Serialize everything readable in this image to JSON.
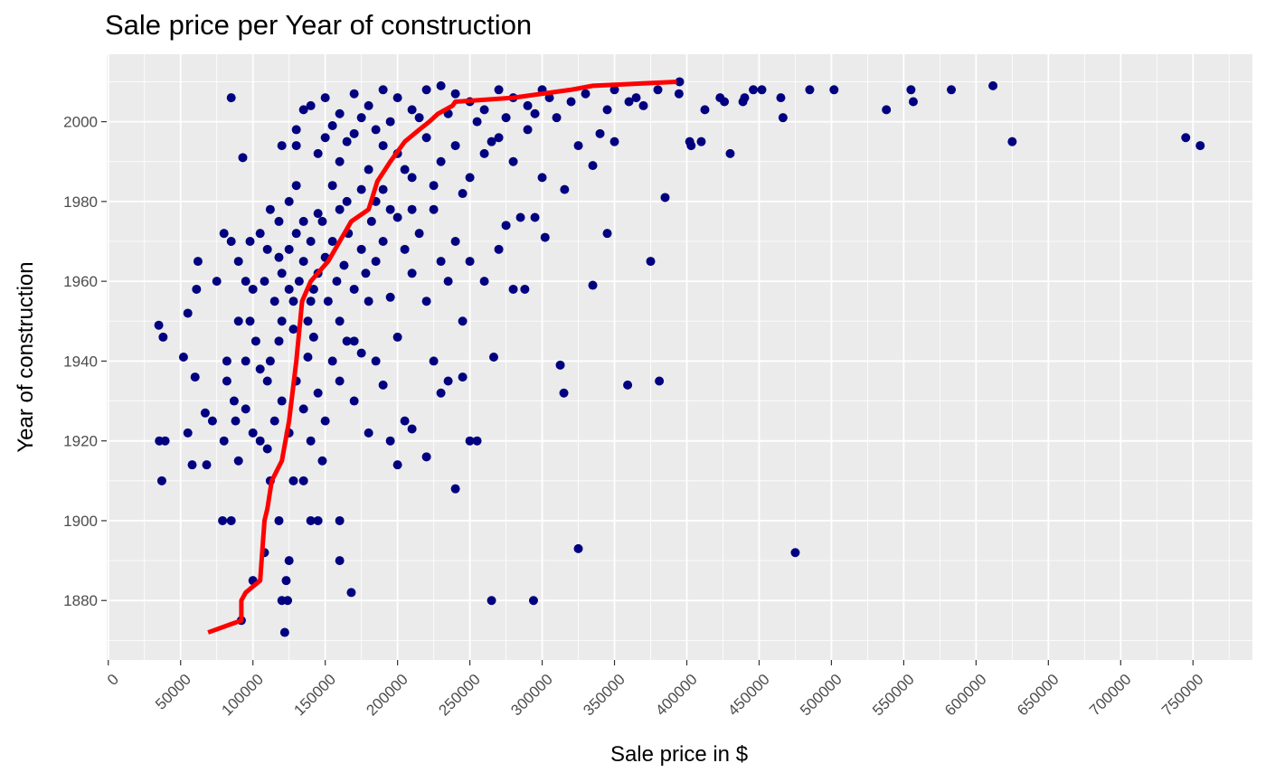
{
  "chart_data": {
    "type": "scatter",
    "title": "Sale price per Year of construction",
    "x_label": "Sale price in $",
    "y_label": "Year of construction",
    "xlim": [
      -1100,
      791100
    ],
    "ylim": [
      1865.1,
      2016.9
    ],
    "xticks": [
      0,
      50000,
      100000,
      150000,
      200000,
      250000,
      300000,
      350000,
      400000,
      450000,
      500000,
      550000,
      600000,
      650000,
      700000,
      750000
    ],
    "yticks": [
      1880,
      1900,
      1920,
      1940,
      1960,
      1980,
      2000
    ],
    "grid": true,
    "points": {
      "color": "#000080",
      "x": [
        755000,
        745000,
        625000,
        611700,
        582900,
        556600,
        555000,
        538000,
        501800,
        485000,
        475000,
        466500,
        465000,
        451900,
        446000,
        440000,
        438800,
        430000,
        426000,
        423000,
        412500,
        410000,
        403000,
        402000,
        395000,
        394600,
        385000,
        381000,
        375000,
        359100,
        345000,
        335000,
        325000,
        315000,
        312500,
        294000,
        265000,
        266500,
        255000,
        240000,
        288000,
        280000,
        302000,
        300000,
        315500,
        335000,
        350000,
        340000,
        325000,
        310000,
        370000,
        380000,
        360000,
        345000,
        300000,
        320000,
        34900,
        37900,
        35300,
        39300,
        37000,
        52000,
        55000,
        58000,
        60000,
        61000,
        62000,
        55000,
        68000,
        67000,
        72000,
        75000,
        80000,
        79000,
        82000,
        85000,
        85000,
        87000,
        90000,
        92000,
        93000,
        95000,
        98000,
        100000,
        102000,
        105000,
        108000,
        110000,
        120000,
        122000,
        123000,
        124000,
        125000,
        118000,
        168000,
        160000,
        160000,
        140000,
        145000,
        135000,
        80000,
        88000,
        95000,
        100000,
        110000,
        115000,
        120000,
        125000,
        130000,
        135000,
        140000,
        145000,
        150000,
        155000,
        160000,
        170000,
        180000,
        185000,
        190000,
        200000,
        205000,
        210000,
        220000,
        225000,
        230000,
        235000,
        245000,
        250000,
        95000,
        105000,
        112000,
        118000,
        128000,
        138000,
        142000,
        165000,
        175000,
        195000,
        148000,
        128000,
        112000,
        90000,
        82000,
        85000,
        90000,
        100000,
        105000,
        110000,
        115000,
        118000,
        120000,
        125000,
        128000,
        130000,
        132000,
        135000,
        138000,
        140000,
        142000,
        145000,
        148000,
        150000,
        152000,
        155000,
        158000,
        160000,
        163000,
        166000,
        170000,
        175000,
        178000,
        182000,
        185000,
        190000,
        195000,
        200000,
        205000,
        210000,
        215000,
        220000,
        225000,
        230000,
        240000,
        250000,
        260000,
        270000,
        275000,
        285000,
        295000,
        245000,
        200000,
        235000,
        120000,
        108000,
        98000,
        112000,
        125000,
        130000,
        145000,
        155000,
        165000,
        175000,
        185000,
        195000,
        210000,
        160000,
        170000,
        180000,
        140000,
        135000,
        125000,
        118000,
        130000,
        145000,
        160000,
        170000,
        180000,
        190000,
        200000,
        210000,
        220000,
        230000,
        240000,
        250000,
        260000,
        270000,
        280000,
        290000,
        140000,
        150000,
        160000,
        170000,
        180000,
        190000,
        200000,
        210000,
        220000,
        230000,
        240000,
        250000,
        260000,
        270000,
        280000,
        290000,
        135000,
        155000,
        175000,
        195000,
        215000,
        235000,
        255000,
        275000,
        295000,
        305000,
        330000,
        350000,
        365000,
        190000,
        205000,
        225000,
        245000,
        265000,
        185000,
        165000,
        150000,
        130000,
        120000
      ],
      "y": [
        1994,
        1996,
        1995,
        2009,
        2008,
        2005,
        2008,
        2003,
        2008,
        2008,
        1892,
        2001,
        2006,
        2008,
        2008,
        2006,
        2005,
        1992,
        2005,
        2006,
        2003,
        1995,
        1994,
        1995,
        2010,
        2007,
        1981,
        1935,
        1965,
        1934,
        1972,
        1959,
        1893,
        1932,
        1939,
        1880,
        1880,
        1941,
        1920,
        1908,
        1958,
        1958,
        1971,
        1986,
        1983,
        1989,
        1995,
        1997,
        1994,
        2001,
        2004,
        2008,
        2005,
        2003,
        2008,
        2005,
        1949,
        1946,
        1920,
        1920,
        1910,
        1941,
        1952,
        1914,
        1936,
        1958,
        1965,
        1922,
        1914,
        1927,
        1925,
        1960,
        1972,
        1900,
        1940,
        1900,
        2006,
        1930,
        1950,
        1875,
        1991,
        1960,
        1970,
        1885,
        1945,
        1920,
        1892,
        1935,
        1880,
        1872,
        1885,
        1880,
        1890,
        1900,
        1882,
        1890,
        1900,
        1900,
        1900,
        1910,
        1920,
        1925,
        1928,
        1922,
        1918,
        1925,
        1930,
        1922,
        1935,
        1928,
        1920,
        1932,
        1925,
        1940,
        1935,
        1930,
        1922,
        1940,
        1934,
        1914,
        1925,
        1923,
        1916,
        1940,
        1932,
        1935,
        1936,
        1920,
        1940,
        1938,
        1940,
        1945,
        1948,
        1941,
        1946,
        1945,
        1942,
        1920,
        1915,
        1910,
        1910,
        1915,
        1935,
        1970,
        1965,
        1958,
        1972,
        1968,
        1955,
        1975,
        1962,
        1968,
        1955,
        1972,
        1960,
        1965,
        1950,
        1970,
        1958,
        1962,
        1975,
        1966,
        1955,
        1970,
        1960,
        1978,
        1964,
        1972,
        1958,
        1968,
        1962,
        1975,
        1965,
        1970,
        1956,
        1976,
        1968,
        1962,
        1972,
        1955,
        1978,
        1965,
        1970,
        1965,
        1960,
        1968,
        1974,
        1976,
        1976,
        1950,
        1946,
        1960,
        1950,
        1960,
        1950,
        1978,
        1980,
        1984,
        1977,
        1984,
        1980,
        1983,
        1980,
        1978,
        1978,
        1950,
        1945,
        1955,
        1955,
        1975,
        1958,
        1966,
        1994,
        1992,
        1990,
        1997,
        1988,
        1994,
        1992,
        1986,
        1996,
        1990,
        1994,
        1986,
        1992,
        1996,
        1990,
        1998,
        2004,
        2006,
        2002,
        2007,
        2004,
        2008,
        2006,
        2003,
        2008,
        2009,
        2007,
        2005,
        2003,
        2008,
        2006,
        2004,
        2003,
        1999,
        2001,
        2000,
        2001,
        2002,
        2000,
        2001,
        2002,
        2006,
        2007,
        2008,
        2006,
        1983,
        1988,
        1984,
        1982,
        1995,
        1998,
        1995,
        1996,
        1998,
        1994
      ]
    },
    "line": {
      "color": "#ff0000",
      "x": [
        69000,
        92000,
        92000,
        95000,
        105000,
        108000,
        110000,
        113000,
        120000,
        125000,
        130000,
        134000,
        140000,
        152000,
        160000,
        168000,
        180000,
        186000,
        195000,
        205000,
        215000,
        222000,
        228000,
        238000,
        240000,
        280000,
        320000,
        335000,
        393000
      ],
      "y": [
        1872,
        1875,
        1880,
        1882,
        1885,
        1900,
        1903,
        1910,
        1915,
        1925,
        1940,
        1955,
        1960,
        1965,
        1970,
        1975,
        1978,
        1985,
        1990,
        1995,
        1998,
        2000,
        2002,
        2004,
        2005,
        2006,
        2008,
        2009,
        2010
      ]
    }
  }
}
